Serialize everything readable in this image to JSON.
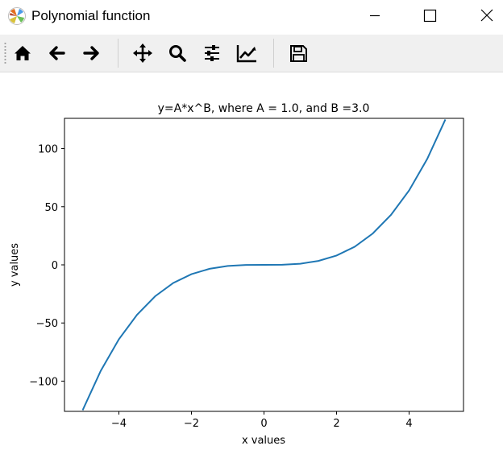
{
  "window": {
    "title": "Polynomial function",
    "icon": "matplotlib-logo-icon",
    "controls": [
      "minimize-icon",
      "maximize-icon",
      "close-icon"
    ]
  },
  "toolbar": {
    "buttons": [
      {
        "name": "home",
        "icon": "home-icon"
      },
      {
        "name": "back",
        "icon": "arrow-left-icon"
      },
      {
        "name": "forward",
        "icon": "arrow-right-icon"
      },
      {
        "name": "pan",
        "icon": "move-icon"
      },
      {
        "name": "zoom",
        "icon": "magnifier-icon"
      },
      {
        "name": "subplots",
        "icon": "sliders-icon"
      },
      {
        "name": "customize",
        "icon": "chart-line-icon"
      },
      {
        "name": "save",
        "icon": "floppy-disk-icon"
      }
    ]
  },
  "chart_data": {
    "type": "line",
    "title": "y=A*x^B, where A = 1.0, and B =3.0",
    "xlabel": "x values",
    "ylabel": "y values",
    "xlim": [
      -5.5,
      5.5
    ],
    "ylim": [
      -126,
      126
    ],
    "xticks": [
      -4,
      -2,
      0,
      2,
      4
    ],
    "xtick_labels": [
      "−4",
      "−2",
      "0",
      "2",
      "4"
    ],
    "yticks": [
      -100,
      -50,
      0,
      50,
      100
    ],
    "ytick_labels": [
      "−100",
      "−50",
      "0",
      "50",
      "100"
    ],
    "grid": false,
    "series": [
      {
        "color": "#1f77b4",
        "x": [
          -5,
          -4.5,
          -4,
          -3.5,
          -3,
          -2.5,
          -2,
          -1.5,
          -1,
          -0.5,
          0,
          0.5,
          1,
          1.5,
          2,
          2.5,
          3,
          3.5,
          4,
          4.5,
          5
        ],
        "y": [
          -125,
          -91.1,
          -64,
          -42.9,
          -27,
          -15.6,
          -8,
          -3.4,
          -1,
          -0.1,
          0,
          0.1,
          1,
          3.4,
          8,
          15.6,
          27,
          42.9,
          64,
          91.1,
          125
        ]
      }
    ]
  }
}
